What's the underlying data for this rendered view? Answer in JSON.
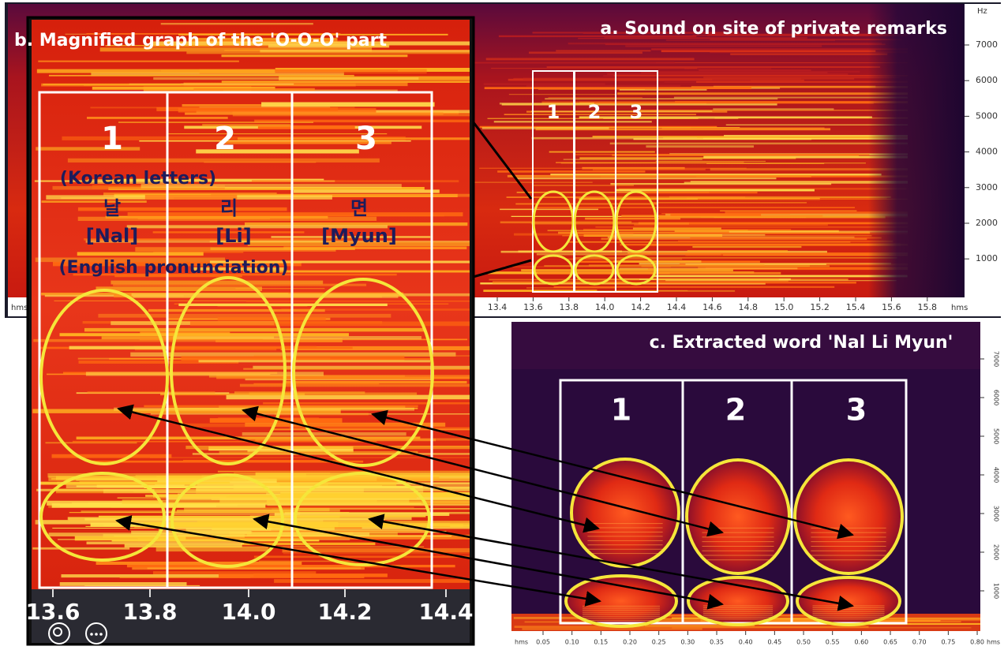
{
  "panel_a": {
    "title": "a. Sound on site of private remarks",
    "y_unit": "Hz",
    "y_ticks": [
      "7000",
      "6000",
      "5000",
      "4000",
      "3000",
      "2000",
      "1000"
    ],
    "x_unit": "hms",
    "x_ticks": [
      "13.4",
      "13.6",
      "13.8",
      "14.0",
      "14.2",
      "14.4",
      "14.6",
      "14.8",
      "15.0",
      "15.2",
      "15.4",
      "15.6",
      "15.8"
    ],
    "segments": [
      "1",
      "2",
      "3"
    ]
  },
  "panel_b": {
    "title": "b. Magnified graph of the 'O-O-O' part",
    "segments": [
      "1",
      "2",
      "3"
    ],
    "korean_note": "(Korean letters)",
    "korean": [
      "날",
      "리",
      "면"
    ],
    "pronunciation": [
      "[Nal]",
      "[Li]",
      "[Myun]"
    ],
    "pronunciation_note": "(English pronunciation)",
    "x_ticks": [
      "13.6",
      "13.8",
      "14.0",
      "14.2",
      "14.4"
    ]
  },
  "panel_c": {
    "title": "c. Extracted word 'Nal Li Myun'",
    "segments": [
      "1",
      "2",
      "3"
    ],
    "y_ticks": [
      "7000",
      "6000",
      "5000",
      "4000",
      "3000",
      "2000",
      "1000"
    ],
    "x_unit": "hms",
    "x_ticks": [
      "0.05",
      "0.10",
      "0.15",
      "0.20",
      "0.25",
      "0.30",
      "0.35",
      "0.40",
      "0.45",
      "0.50",
      "0.55",
      "0.60",
      "0.65",
      "0.70",
      "0.75",
      "0.80"
    ]
  }
}
